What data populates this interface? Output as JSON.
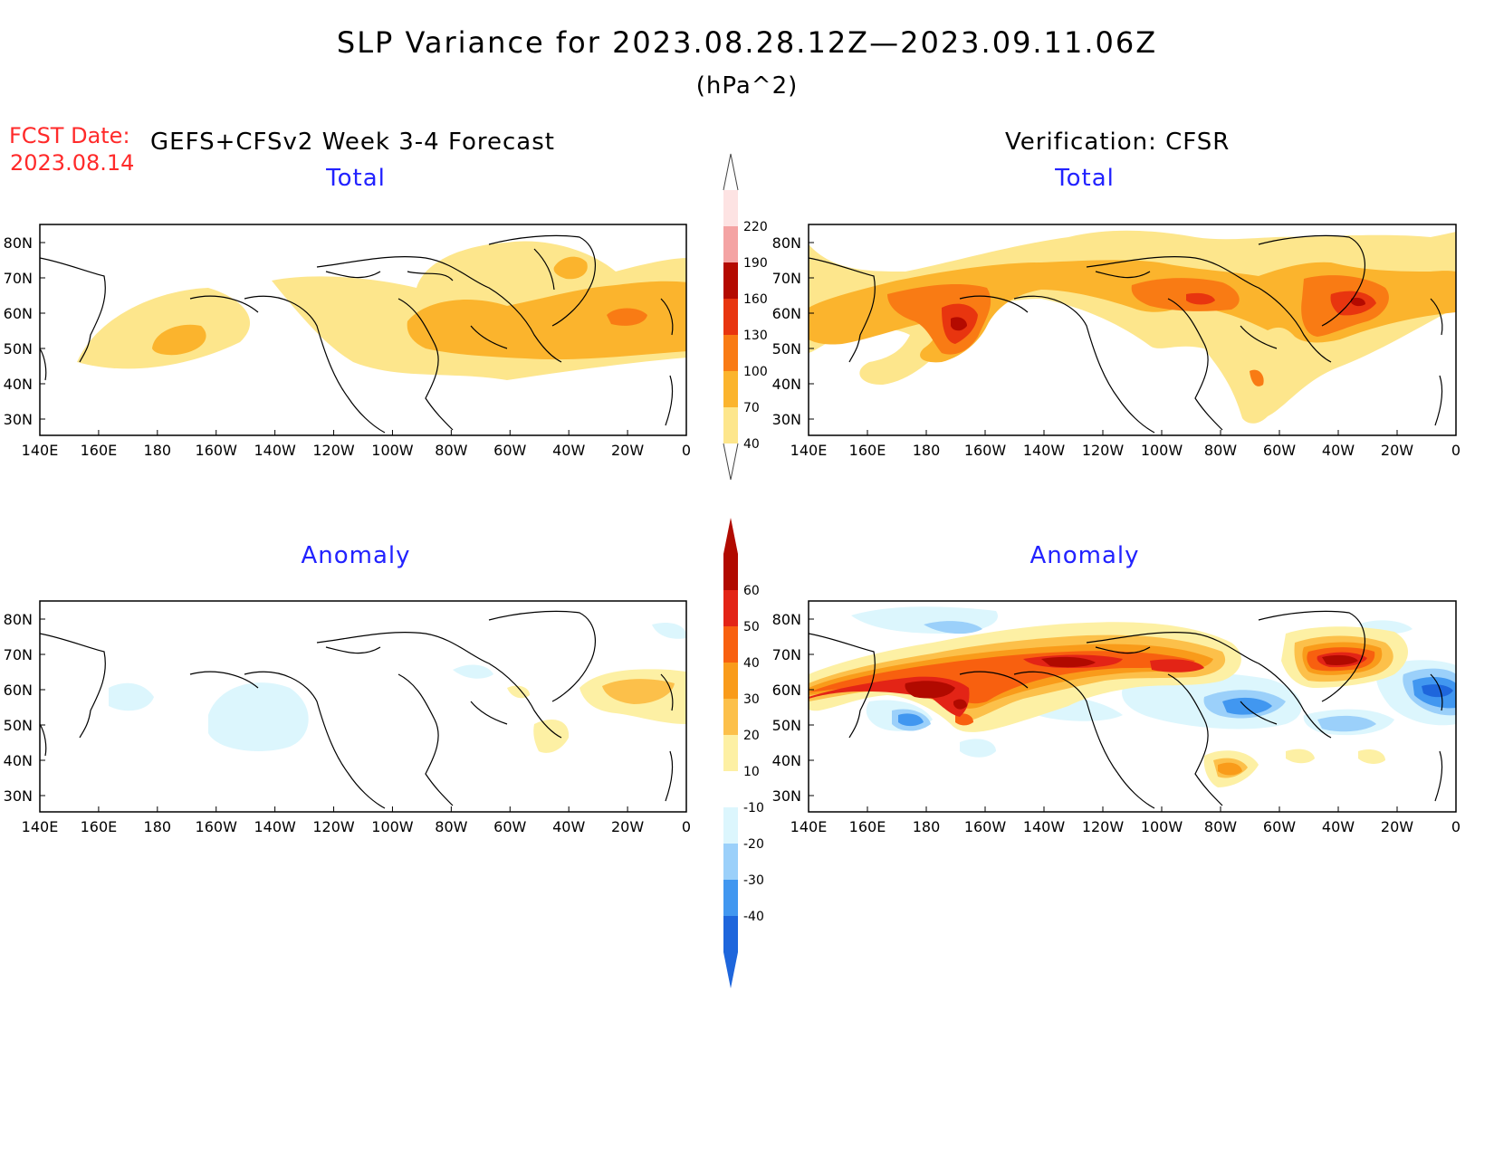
{
  "title": "SLP Variance for 2023.08.28.12Z—2023.09.11.06Z",
  "units": "(hPa^2)",
  "fcst_label": "FCST Date:",
  "fcst_date": "2023.08.14",
  "left_header": "GEFS+CFSv2 Week 3-4 Forecast",
  "right_header": "Verification: CFSR",
  "panels": {
    "forecast_total": {
      "title": "Total"
    },
    "verification_total": {
      "title": "Total"
    },
    "forecast_anomaly": {
      "title": "Anomaly"
    },
    "verification_anomaly": {
      "title": "Anomaly"
    }
  },
  "lon_ticks": [
    "140E",
    "160E",
    "180",
    "160W",
    "140W",
    "120W",
    "100W",
    "80W",
    "60W",
    "40W",
    "20W",
    "0"
  ],
  "lat_ticks": [
    "80N",
    "70N",
    "60N",
    "50N",
    "40N",
    "30N"
  ],
  "colorbars": {
    "total": {
      "levels": [
        "40",
        "70",
        "100",
        "130",
        "160",
        "190",
        "220"
      ],
      "colors": [
        "#fde68c",
        "#fbb42d",
        "#f97b14",
        "#e8350f",
        "#b40a00",
        "#f4a3a3",
        "#fde3e3"
      ]
    },
    "anomaly": {
      "levels": [
        "60",
        "50",
        "40",
        "30",
        "20",
        "10",
        "-10",
        "-20",
        "-30",
        "-40"
      ],
      "colors": [
        "#b10a00",
        "#e32416",
        "#f8600f",
        "#f99b1a",
        "#fcc04a",
        "#fdf0a4",
        "#ffffff",
        "#dcf6fd",
        "#9bd0fa",
        "#4197f0",
        "#1e66dc"
      ]
    }
  },
  "colors": {
    "title": "#000000",
    "fcst": "#ff2a2a",
    "panel_title": "#2222ff"
  }
}
